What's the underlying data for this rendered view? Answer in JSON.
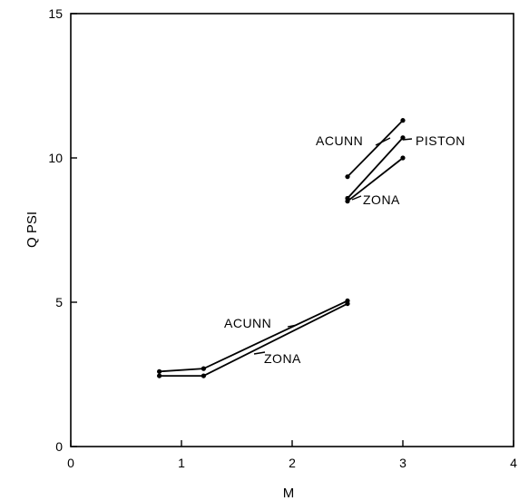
{
  "chart_data": {
    "type": "line",
    "title": "",
    "xlabel": "M",
    "ylabel": "Q PSI",
    "xlim": [
      0,
      4
    ],
    "ylim": [
      0,
      15
    ],
    "xticks": [
      0,
      1,
      2,
      3,
      4
    ],
    "yticks": [
      0,
      5,
      10,
      15
    ],
    "grid": false,
    "series": [
      {
        "label": "ACUNN",
        "group": "low",
        "x": [
          0.8,
          1.2,
          2.5
        ],
        "y": [
          2.6,
          2.7,
          5.05
        ]
      },
      {
        "label": "ZONA",
        "group": "low",
        "x": [
          0.8,
          1.2,
          2.5
        ],
        "y": [
          2.45,
          2.45,
          4.95
        ]
      },
      {
        "label": "ACUNN",
        "group": "high",
        "x": [
          2.5,
          3.0
        ],
        "y": [
          9.35,
          11.3
        ]
      },
      {
        "label": "PISTON",
        "group": "high",
        "x": [
          2.5,
          3.0
        ],
        "y": [
          8.6,
          10.7
        ]
      },
      {
        "label": "ZONA",
        "group": "high",
        "x": [
          2.5,
          3.0
        ],
        "y": [
          8.5,
          10.0
        ]
      }
    ]
  }
}
